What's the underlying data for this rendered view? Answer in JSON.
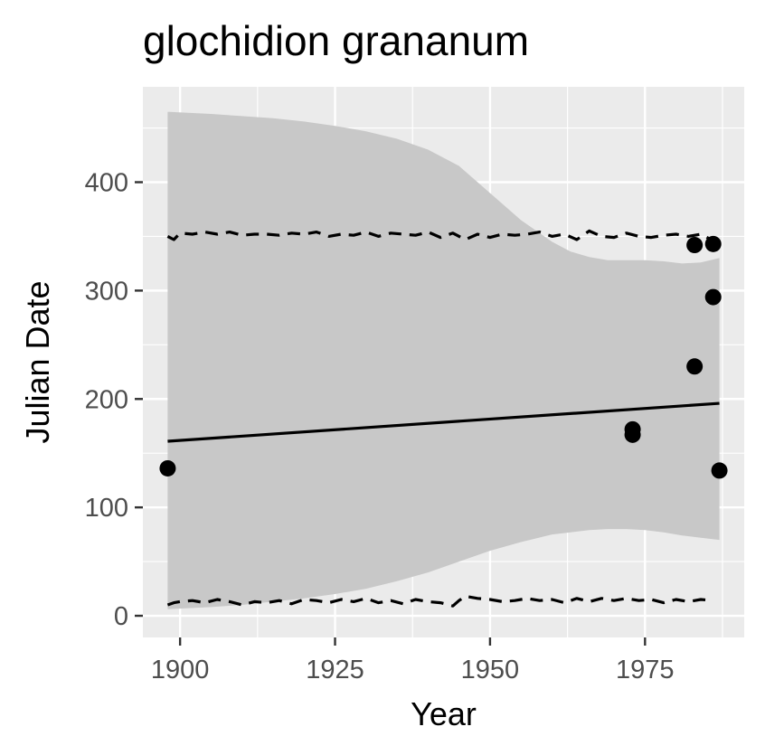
{
  "chart_data": {
    "type": "scatter",
    "title": "glochidion grananum",
    "xlabel": "Year",
    "ylabel": "Julian Date",
    "xlim": [
      1894,
      1991
    ],
    "ylim": [
      -20,
      488
    ],
    "x_ticks": [
      1900,
      1925,
      1950,
      1975
    ],
    "x_tick_labels": [
      "1900",
      "1925",
      "1950",
      "1975"
    ],
    "y_ticks": [
      0,
      100,
      200,
      300,
      400
    ],
    "y_tick_labels": [
      "0",
      "100",
      "200",
      "300",
      "400"
    ],
    "grid": true,
    "legend": "none",
    "points": [
      {
        "x": 1898,
        "y": 136
      },
      {
        "x": 1973,
        "y": 172
      },
      {
        "x": 1973,
        "y": 167
      },
      {
        "x": 1983,
        "y": 342
      },
      {
        "x": 1983,
        "y": 230
      },
      {
        "x": 1986,
        "y": 343
      },
      {
        "x": 1986,
        "y": 294
      },
      {
        "x": 1987,
        "y": 134
      }
    ],
    "trend_line": {
      "x": [
        1898,
        1987
      ],
      "y": [
        161,
        196
      ]
    },
    "confidence_band": {
      "x": [
        1898,
        1905,
        1910,
        1915,
        1920,
        1925,
        1930,
        1935,
        1940,
        1945,
        1950,
        1955,
        1960,
        1963,
        1966,
        1969,
        1972,
        1975,
        1978,
        1981,
        1984,
        1987
      ],
      "upper": [
        465,
        463,
        461,
        459,
        456,
        452,
        447,
        440,
        430,
        415,
        390,
        365,
        345,
        336,
        331,
        328,
        328,
        328,
        327,
        325,
        326,
        330
      ],
      "lower": [
        6,
        8,
        10,
        13,
        16,
        20,
        25,
        32,
        40,
        50,
        60,
        68,
        75,
        77,
        79,
        80,
        80,
        79,
        77,
        74,
        72,
        70
      ]
    },
    "dashed_upper": {
      "x": [
        1898,
        1899,
        1900,
        1902,
        1904,
        1906,
        1908,
        1910,
        1912,
        1914,
        1916,
        1918,
        1920,
        1922,
        1924,
        1926,
        1928,
        1930,
        1932,
        1934,
        1936,
        1938,
        1940,
        1942,
        1944,
        1946,
        1948,
        1950,
        1952,
        1954,
        1956,
        1958,
        1960,
        1962,
        1964,
        1966,
        1968,
        1970,
        1972,
        1974,
        1976,
        1978,
        1980,
        1982,
        1984,
        1986
      ],
      "y": [
        350,
        347,
        353,
        352,
        354,
        352,
        354,
        351,
        352,
        352,
        351,
        353,
        352,
        354,
        350,
        352,
        351,
        354,
        350,
        353,
        352,
        351,
        354,
        349,
        353,
        347,
        352,
        349,
        352,
        351,
        352,
        354,
        350,
        352,
        347,
        355,
        350,
        349,
        353,
        350,
        349,
        351,
        352,
        350,
        352,
        346
      ]
    },
    "dashed_lower": {
      "x": [
        1898,
        1899,
        1900,
        1902,
        1904,
        1906,
        1908,
        1910,
        1912,
        1914,
        1916,
        1918,
        1920,
        1922,
        1924,
        1926,
        1928,
        1930,
        1932,
        1934,
        1936,
        1938,
        1940,
        1942,
        1944,
        1945,
        1946,
        1948,
        1950,
        1952,
        1954,
        1956,
        1958,
        1960,
        1962,
        1964,
        1966,
        1968,
        1970,
        1972,
        1974,
        1976,
        1978,
        1980,
        1982,
        1984,
        1986
      ],
      "y": [
        10,
        12,
        13,
        14,
        12,
        15,
        13,
        10,
        13,
        12,
        14,
        11,
        15,
        14,
        12,
        15,
        13,
        16,
        12,
        14,
        11,
        15,
        13,
        12,
        9,
        14,
        18,
        16,
        15,
        13,
        14,
        16,
        14,
        15,
        12,
        16,
        13,
        16,
        14,
        16,
        14,
        15,
        12,
        15,
        13,
        15,
        14
      ]
    }
  }
}
